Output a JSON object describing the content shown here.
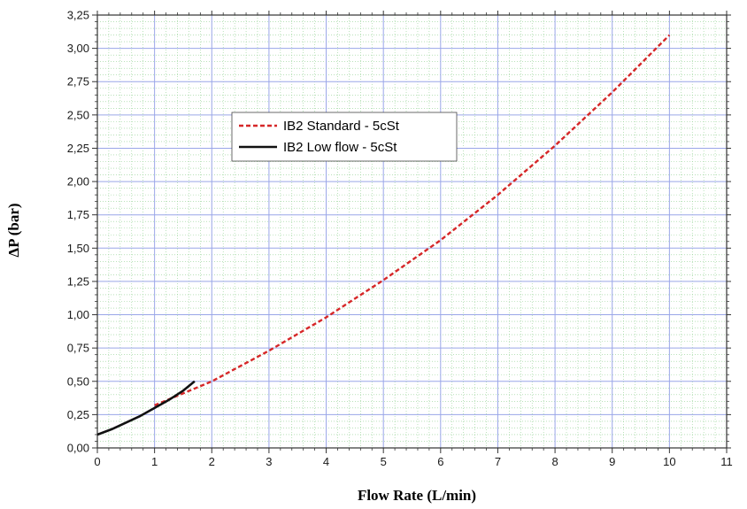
{
  "chart_data": {
    "type": "line",
    "xlabel": "Flow Rate (L/min)",
    "ylabel": "ΔP (bar)",
    "xlim": [
      0,
      11
    ],
    "ylim": [
      0,
      3.25
    ],
    "x_ticks": [
      "0",
      "1",
      "2",
      "3",
      "4",
      "5",
      "6",
      "7",
      "8",
      "9",
      "10",
      "11"
    ],
    "y_ticks": [
      "0,00",
      "0,25",
      "0,50",
      "0,75",
      "1,00",
      "1,25",
      "1,50",
      "1,75",
      "2,00",
      "2,25",
      "2,50",
      "2,75",
      "3,00",
      "3,25"
    ],
    "grid": true,
    "legend_position": "upper-left-center",
    "series": [
      {
        "name": "IB2 Standard - 5cSt",
        "color": "#d62728",
        "style": "dashed",
        "points": [
          [
            1,
            0.32
          ],
          [
            2,
            0.5
          ],
          [
            3,
            0.73
          ],
          [
            4,
            0.98
          ],
          [
            5,
            1.26
          ],
          [
            6,
            1.56
          ],
          [
            7,
            1.9
          ],
          [
            8,
            2.27
          ],
          [
            9,
            2.67
          ],
          [
            10,
            3.1
          ]
        ]
      },
      {
        "name": "IB2 Low flow - 5cSt",
        "color": "#111111",
        "style": "solid",
        "points": [
          [
            0,
            0.1
          ],
          [
            0.25,
            0.14
          ],
          [
            0.5,
            0.19
          ],
          [
            0.75,
            0.24
          ],
          [
            1,
            0.3
          ],
          [
            1.25,
            0.36
          ],
          [
            1.5,
            0.43
          ],
          [
            1.7,
            0.5
          ]
        ]
      }
    ]
  }
}
